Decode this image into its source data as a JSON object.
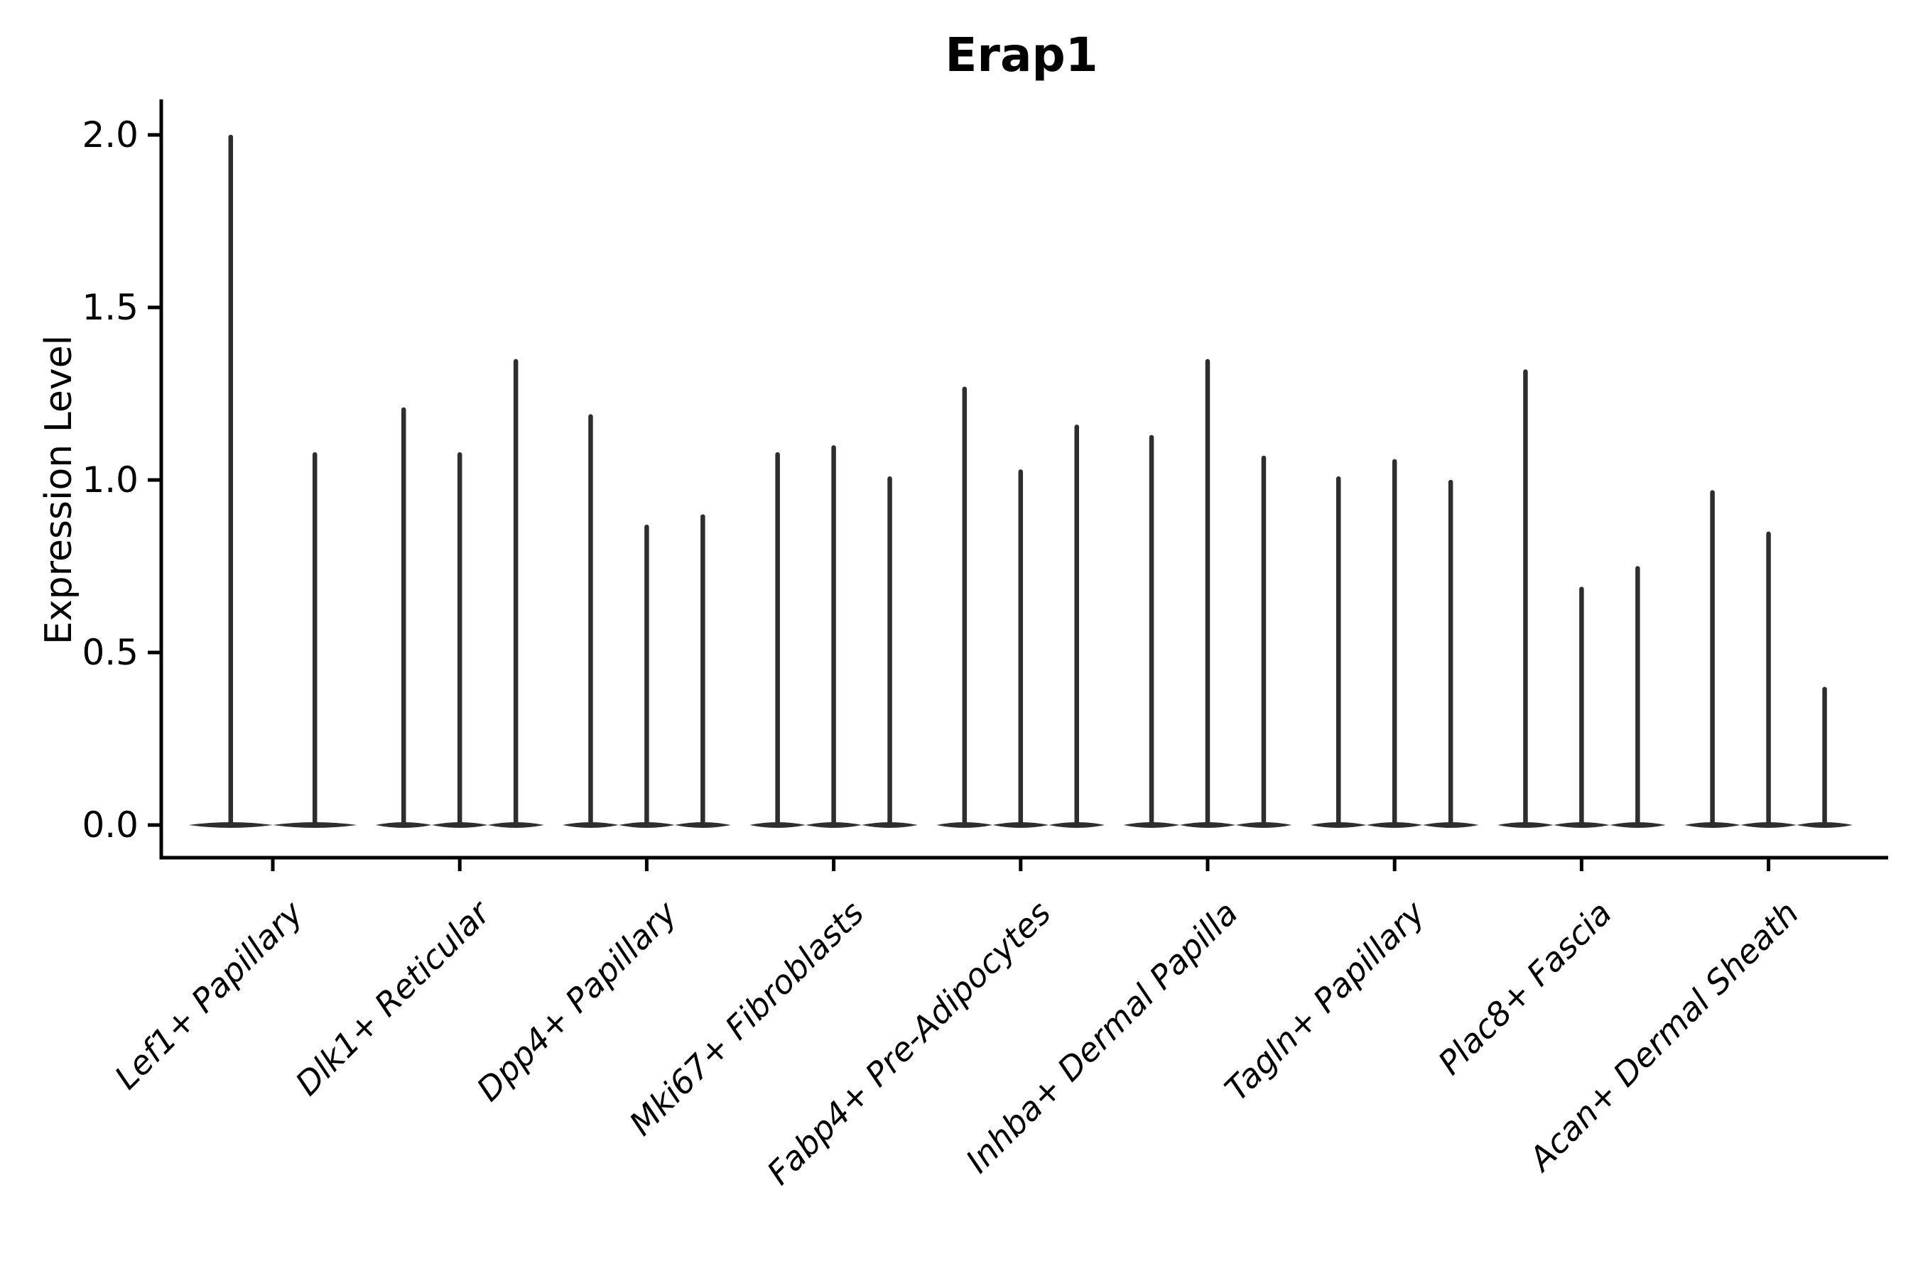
{
  "figure": {
    "title": "Erap1",
    "ylabel": "Expression Level"
  },
  "colors": {
    "violin": "#2e2e2e",
    "axis": "#000000",
    "text": "#000000",
    "background": "#ffffff"
  },
  "chart_data": {
    "type": "violin",
    "title": "Erap1",
    "xlabel": "",
    "ylabel": "Expression Level",
    "ylim": [
      0,
      2.05
    ],
    "yticks": [
      0,
      0.5,
      1.0,
      1.5,
      2.0
    ],
    "ytick_labels": [
      "0.0",
      "0.5",
      "1.0",
      "1.5",
      "2.0"
    ],
    "grid": false,
    "legend": false,
    "description": "Violin plot of Erap1 expression; each category shows very thin violins collapsed at 0 with narrow spikes reaching the listed maximum expression values.",
    "categories": [
      "Lef1+ Papillary",
      "Dlk1+ Reticular",
      "Dpp4+ Papillary",
      "Mki67+ Fibroblasts",
      "Fabp4+ Pre-Adipocytes",
      "Inhba+ Dermal Papilla",
      "Tagln+ Papillary",
      "Plac8+ Fascia",
      "Acan+ Dermal Sheath"
    ],
    "series": [
      {
        "category": "Lef1+ Papillary",
        "violin_min": 0,
        "violin_max_values": [
          2.0,
          1.08
        ]
      },
      {
        "category": "Dlk1+ Reticular",
        "violin_min": 0,
        "violin_max_values": [
          1.21,
          1.08,
          1.35
        ]
      },
      {
        "category": "Dpp4+ Papillary",
        "violin_min": 0,
        "violin_max_values": [
          1.19,
          0.87,
          0.9
        ]
      },
      {
        "category": "Mki67+ Fibroblasts",
        "violin_min": 0,
        "violin_max_values": [
          1.08,
          1.1,
          1.01
        ]
      },
      {
        "category": "Fabp4+ Pre-Adipocytes",
        "violin_min": 0,
        "violin_max_values": [
          1.27,
          1.03,
          1.16
        ]
      },
      {
        "category": "Inhba+ Dermal Papilla",
        "violin_min": 0,
        "violin_max_values": [
          1.13,
          1.35,
          1.07
        ]
      },
      {
        "category": "Tagln+ Papillary",
        "violin_min": 0,
        "violin_max_values": [
          1.01,
          1.06,
          1.0
        ]
      },
      {
        "category": "Plac8+ Fascia",
        "violin_min": 0,
        "violin_max_values": [
          1.32,
          0.69,
          0.75
        ]
      },
      {
        "category": "Acan+ Dermal Sheath",
        "violin_min": 0,
        "violin_max_values": [
          0.97,
          0.85,
          0.4
        ]
      }
    ]
  }
}
